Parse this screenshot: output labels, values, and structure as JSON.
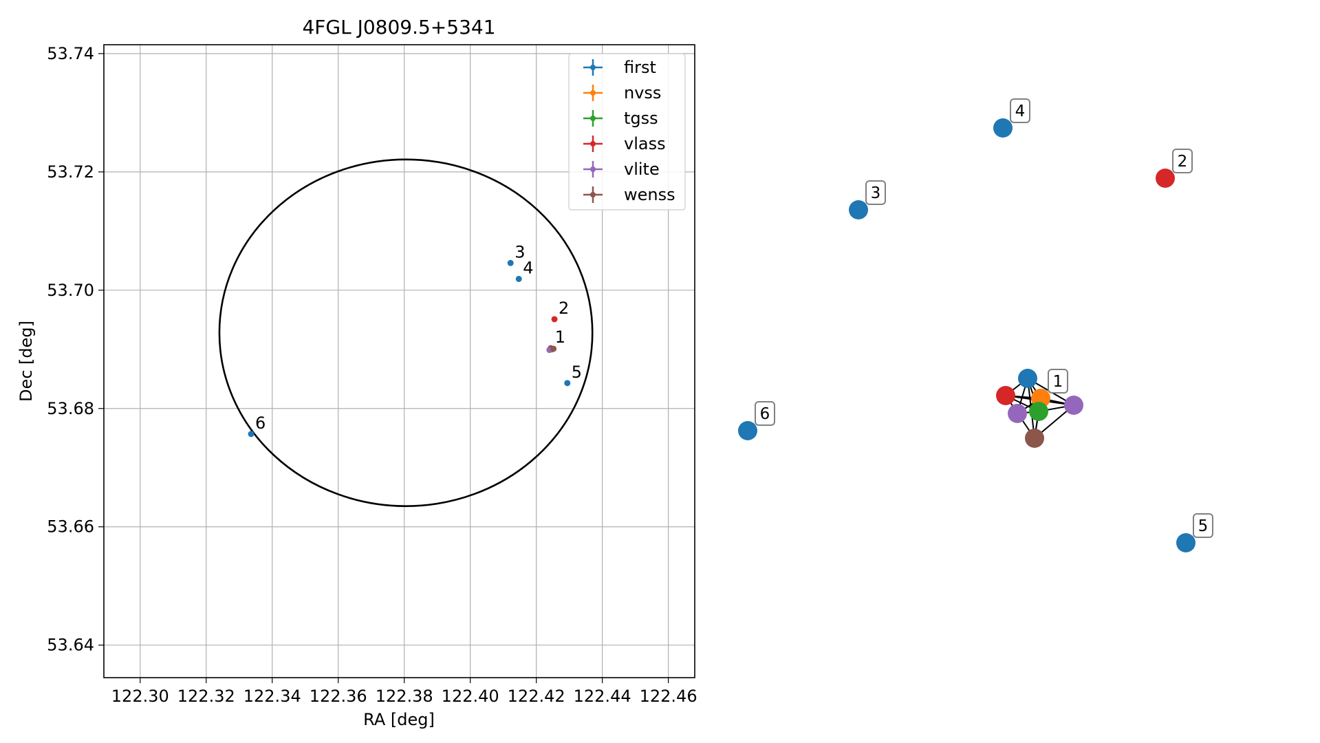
{
  "chart_data": [
    {
      "type": "scatter",
      "title": "4FGL J0809.5+5341",
      "xlabel": "RA [deg]",
      "ylabel": "Dec [deg]",
      "xlim": [
        122.289,
        122.468
      ],
      "ylim": [
        53.6345,
        53.7415
      ],
      "xticks": [
        "122.30",
        "122.32",
        "122.34",
        "122.36",
        "122.38",
        "122.40",
        "122.42",
        "122.44",
        "122.46"
      ],
      "yticks": [
        "53.64",
        "53.66",
        "53.68",
        "53.70",
        "53.72",
        "53.74"
      ],
      "grid": true,
      "legend_position": "top-right",
      "legend": [
        {
          "name": "first",
          "color": "#1f77b4"
        },
        {
          "name": "nvss",
          "color": "#ff7f0e"
        },
        {
          "name": "tgss",
          "color": "#2ca02c"
        },
        {
          "name": "vlass",
          "color": "#d62728"
        },
        {
          "name": "vlite",
          "color": "#9467bd"
        },
        {
          "name": "wenss",
          "color": "#8c564b"
        }
      ],
      "ellipse": {
        "center": [
          122.3805,
          53.6928
        ],
        "ra_half_width": 0.0565,
        "dec_half_height": 0.0293,
        "color": "#000000"
      },
      "points": [
        {
          "label": "1",
          "x": 122.4244,
          "y": 53.6902,
          "color": "#1f77b4"
        },
        {
          "label": "1",
          "x": 122.4248,
          "y": 53.6901,
          "color": "#ff7f0e"
        },
        {
          "label": "1",
          "x": 122.4247,
          "y": 53.69,
          "color": "#2ca02c"
        },
        {
          "label": "1",
          "x": 122.4243,
          "y": 53.6901,
          "color": "#d62728"
        },
        {
          "label": "1",
          "x": 122.424,
          "y": 53.6899,
          "color": "#9467bd"
        },
        {
          "label": "1",
          "x": 122.4252,
          "y": 53.6901,
          "color": "#8c564b"
        },
        {
          "label": "2",
          "x": 122.4255,
          "y": 53.6951,
          "color": "#d62728"
        },
        {
          "label": "3",
          "x": 122.4122,
          "y": 53.7046,
          "color": "#1f77b4"
        },
        {
          "label": "4",
          "x": 122.4147,
          "y": 53.7019,
          "color": "#1f77b4"
        },
        {
          "label": "5",
          "x": 122.4294,
          "y": 53.6843,
          "color": "#1f77b4"
        },
        {
          "label": "6",
          "x": 122.3336,
          "y": 53.6757,
          "color": "#1f77b4"
        }
      ]
    },
    {
      "type": "network",
      "nodes": [
        {
          "id": "n1-first",
          "color": "#1f77b4"
        },
        {
          "id": "n1-nvss",
          "color": "#ff7f0e",
          "label": "1"
        },
        {
          "id": "n1-tgss",
          "color": "#2ca02c"
        },
        {
          "id": "n1-vlass",
          "color": "#d62728"
        },
        {
          "id": "n1-vlite-a",
          "color": "#9467bd"
        },
        {
          "id": "n1-vlite-b",
          "color": "#9467bd"
        },
        {
          "id": "n1-wenss",
          "color": "#8c564b"
        },
        {
          "id": "n2",
          "color": "#d62728",
          "label": "2"
        },
        {
          "id": "n3",
          "color": "#1f77b4",
          "label": "3"
        },
        {
          "id": "n4",
          "color": "#1f77b4",
          "label": "4"
        },
        {
          "id": "n5",
          "color": "#1f77b4",
          "label": "5"
        },
        {
          "id": "n6",
          "color": "#1f77b4",
          "label": "6"
        }
      ],
      "edges": [
        [
          "n1-first",
          "n1-nvss"
        ],
        [
          "n1-first",
          "n1-tgss"
        ],
        [
          "n1-first",
          "n1-vlass"
        ],
        [
          "n1-first",
          "n1-vlite-a"
        ],
        [
          "n1-first",
          "n1-vlite-b"
        ],
        [
          "n1-first",
          "n1-wenss"
        ],
        [
          "n1-nvss",
          "n1-tgss"
        ],
        [
          "n1-nvss",
          "n1-vlass"
        ],
        [
          "n1-nvss",
          "n1-vlite-a"
        ],
        [
          "n1-nvss",
          "n1-vlite-b"
        ],
        [
          "n1-nvss",
          "n1-wenss"
        ],
        [
          "n1-tgss",
          "n1-vlass"
        ],
        [
          "n1-tgss",
          "n1-vlite-a"
        ],
        [
          "n1-tgss",
          "n1-vlite-b"
        ],
        [
          "n1-tgss",
          "n1-wenss"
        ],
        [
          "n1-vlass",
          "n1-vlite-a"
        ],
        [
          "n1-vlass",
          "n1-wenss"
        ],
        [
          "n1-vlite-a",
          "n1-wenss"
        ]
      ]
    }
  ]
}
